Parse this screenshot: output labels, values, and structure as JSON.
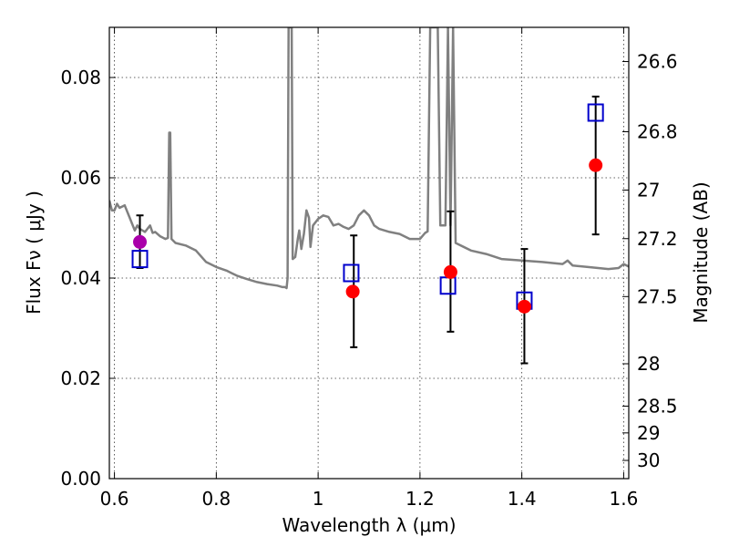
{
  "chart_data": {
    "type": "scatter",
    "xlabel": "Wavelength  λ (μm)",
    "ylabel": "Flux  Fν  ( μJy )",
    "y2label": "Magnitude (AB)",
    "xlim": [
      0.59,
      1.61
    ],
    "ylim": [
      0.0,
      0.09
    ],
    "grid": true,
    "xticks": [
      {
        "v": 0.6,
        "label": "0.6"
      },
      {
        "v": 0.8,
        "label": "0.8"
      },
      {
        "v": 1.0,
        "label": "1"
      },
      {
        "v": 1.2,
        "label": "1.2"
      },
      {
        "v": 1.4,
        "label": "1.4"
      },
      {
        "v": 1.6,
        "label": "1.6"
      }
    ],
    "yticks": [
      {
        "v": 0.0,
        "label": "0.00"
      },
      {
        "v": 0.02,
        "label": "0.02"
      },
      {
        "v": 0.04,
        "label": "0.04"
      },
      {
        "v": 0.06,
        "label": "0.06"
      },
      {
        "v": 0.08,
        "label": "0.08"
      }
    ],
    "y2ticks": [
      {
        "v": 26.6,
        "label": "26.6"
      },
      {
        "v": 26.8,
        "label": "26.8"
      },
      {
        "v": 27.0,
        "label": "27"
      },
      {
        "v": 27.2,
        "label": "27.2"
      },
      {
        "v": 27.5,
        "label": "27.5"
      },
      {
        "v": 28.0,
        "label": "28"
      },
      {
        "v": 28.5,
        "label": "28.5"
      },
      {
        "v": 29.0,
        "label": "29"
      },
      {
        "v": 30.0,
        "label": "30"
      }
    ],
    "series": [
      {
        "kind": "line",
        "color": "#808080",
        "points": [
          [
            0.59,
            0.0555
          ],
          [
            0.595,
            0.0535
          ],
          [
            0.6,
            0.0535
          ],
          [
            0.605,
            0.0548
          ],
          [
            0.61,
            0.054
          ],
          [
            0.62,
            0.0545
          ],
          [
            0.63,
            0.052
          ],
          [
            0.64,
            0.0495
          ],
          [
            0.645,
            0.0505
          ],
          [
            0.65,
            0.0498
          ],
          [
            0.66,
            0.0492
          ],
          [
            0.67,
            0.0505
          ],
          [
            0.675,
            0.049
          ],
          [
            0.68,
            0.0492
          ],
          [
            0.69,
            0.0483
          ],
          [
            0.7,
            0.0478
          ],
          [
            0.705,
            0.048
          ],
          [
            0.7075,
            0.069
          ],
          [
            0.7095,
            0.069
          ],
          [
            0.712,
            0.0478
          ],
          [
            0.72,
            0.047
          ],
          [
            0.74,
            0.0465
          ],
          [
            0.76,
            0.0455
          ],
          [
            0.78,
            0.0432
          ],
          [
            0.8,
            0.0422
          ],
          [
            0.82,
            0.0415
          ],
          [
            0.84,
            0.0405
          ],
          [
            0.86,
            0.0398
          ],
          [
            0.88,
            0.0392
          ],
          [
            0.9,
            0.0388
          ],
          [
            0.92,
            0.0385
          ],
          [
            0.93,
            0.0382
          ],
          [
            0.935,
            0.0382
          ],
          [
            0.938,
            0.038
          ],
          [
            0.94,
            0.04
          ],
          [
            0.942,
            0.09
          ],
          [
            0.948,
            0.09
          ],
          [
            0.95,
            0.0438
          ],
          [
            0.955,
            0.0442
          ],
          [
            0.96,
            0.0478
          ],
          [
            0.963,
            0.0495
          ],
          [
            0.967,
            0.0458
          ],
          [
            0.972,
            0.0488
          ],
          [
            0.977,
            0.0535
          ],
          [
            0.982,
            0.052
          ],
          [
            0.985,
            0.0462
          ],
          [
            0.99,
            0.0505
          ],
          [
            1.0,
            0.0518
          ],
          [
            1.01,
            0.0525
          ],
          [
            1.02,
            0.0522
          ],
          [
            1.03,
            0.0505
          ],
          [
            1.04,
            0.0508
          ],
          [
            1.05,
            0.0502
          ],
          [
            1.06,
            0.0498
          ],
          [
            1.07,
            0.0505
          ],
          [
            1.08,
            0.0525
          ],
          [
            1.09,
            0.0535
          ],
          [
            1.1,
            0.0525
          ],
          [
            1.11,
            0.0505
          ],
          [
            1.12,
            0.0498
          ],
          [
            1.14,
            0.0492
          ],
          [
            1.16,
            0.0488
          ],
          [
            1.18,
            0.0478
          ],
          [
            1.2,
            0.0478
          ],
          [
            1.21,
            0.049
          ],
          [
            1.215,
            0.0493
          ],
          [
            1.22,
            0.09
          ],
          [
            1.235,
            0.09
          ],
          [
            1.24,
            0.0505
          ],
          [
            1.25,
            0.0505
          ],
          [
            1.255,
            0.09
          ],
          [
            1.26,
            0.0505
          ],
          [
            1.265,
            0.09
          ],
          [
            1.27,
            0.047
          ],
          [
            1.3,
            0.0455
          ],
          [
            1.33,
            0.0448
          ],
          [
            1.36,
            0.0438
          ],
          [
            1.4,
            0.0435
          ],
          [
            1.44,
            0.0432
          ],
          [
            1.48,
            0.0428
          ],
          [
            1.49,
            0.0435
          ],
          [
            1.5,
            0.0425
          ],
          [
            1.53,
            0.0422
          ],
          [
            1.55,
            0.042
          ],
          [
            1.57,
            0.0418
          ],
          [
            1.59,
            0.042
          ],
          [
            1.6,
            0.0428
          ],
          [
            1.61,
            0.0423
          ]
        ]
      },
      {
        "kind": "errorbar",
        "color": "#000000",
        "points": [
          {
            "x": 0.65,
            "lo": 0.042,
            "hi": 0.0525
          },
          {
            "x": 1.07,
            "lo": 0.0262,
            "hi": 0.0485
          },
          {
            "x": 1.26,
            "lo": 0.0293,
            "hi": 0.0533
          },
          {
            "x": 1.405,
            "lo": 0.023,
            "hi": 0.0458
          },
          {
            "x": 1.545,
            "lo": 0.0487,
            "hi": 0.0762
          }
        ]
      },
      {
        "kind": "open-square",
        "color": "#0000cc",
        "points": [
          [
            0.65,
            0.0438
          ],
          [
            1.065,
            0.041
          ],
          [
            1.255,
            0.0385
          ],
          [
            1.405,
            0.0355
          ],
          [
            1.545,
            0.073
          ]
        ]
      },
      {
        "kind": "filled-circle",
        "color": "#ff0000",
        "points": [
          [
            1.068,
            0.0373
          ],
          [
            1.26,
            0.0412
          ],
          [
            1.405,
            0.0343
          ],
          [
            1.545,
            0.0625
          ]
        ]
      },
      {
        "kind": "filled-circle",
        "color": "#aa00aa",
        "points": [
          [
            0.65,
            0.0472
          ]
        ]
      }
    ]
  }
}
